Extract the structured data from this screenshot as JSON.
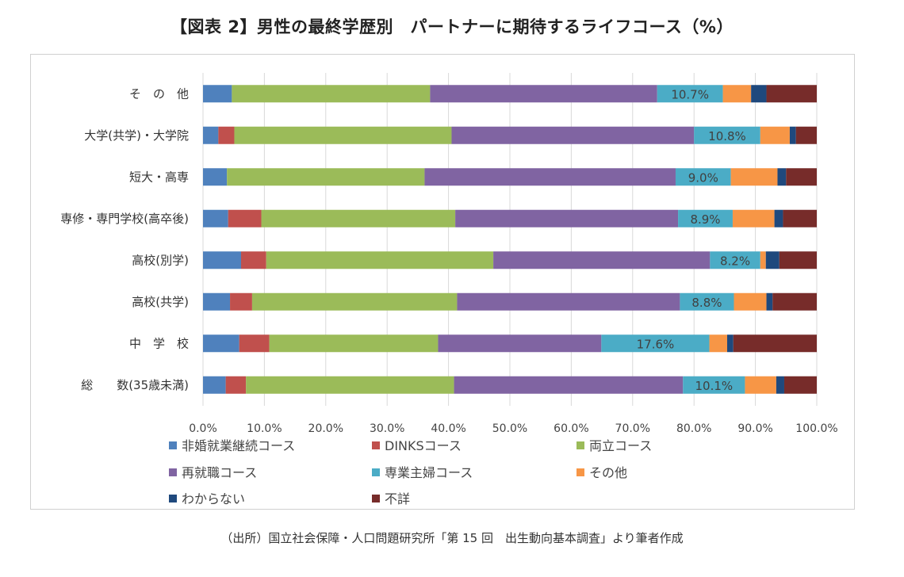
{
  "title": "【図表 2】男性の最終学歴別　パートナーに期待するライフコース（%）",
  "source": "（出所）国立社会保障・人口問題研究所「第 15 回　出生動向基本調査」より筆者作成",
  "chart_data": {
    "type": "bar",
    "orientation": "horizontal",
    "stacked": "percent",
    "categories": [
      "その他",
      "大学(共学)・大学院",
      "短大・高専",
      "専修・専門学校(高卒後)",
      "高校(別学)",
      "高校(共学)",
      "中学校",
      "総数(35歳未満)"
    ],
    "category_labels": [
      "そ　の　他",
      "大学(共学)・大学院",
      "短大・高専",
      "専修・専門学校(高卒後)",
      "高校(別学)",
      "高校(共学)",
      "中　学　校",
      "総　　数(35歳未満)"
    ],
    "xlim": [
      0,
      100
    ],
    "xticks": [
      "0.0%",
      "10.0%",
      "20.0%",
      "30.0%",
      "40.0%",
      "50.0%",
      "60.0%",
      "70.0%",
      "80.0%",
      "90.0%",
      "100.0%"
    ],
    "grid": true,
    "legend_position": "bottom",
    "series": [
      {
        "name": "非婚就業継続コース",
        "color": "#4f81bd",
        "values": [
          4.7,
          2.5,
          3.9,
          4.1,
          6.2,
          4.4,
          5.9,
          3.7
        ]
      },
      {
        "name": "DINKSコース",
        "color": "#c0504d",
        "values": [
          0.0,
          2.6,
          0.0,
          5.4,
          4.1,
          3.6,
          4.9,
          3.3
        ]
      },
      {
        "name": "両立コース",
        "color": "#9bbb59",
        "values": [
          32.3,
          35.4,
          32.2,
          31.6,
          37.0,
          33.4,
          27.5,
          33.9
        ]
      },
      {
        "name": "再就職コース",
        "color": "#8064a2",
        "values": [
          37.0,
          39.5,
          40.9,
          36.3,
          35.3,
          36.3,
          26.6,
          37.3
        ]
      },
      {
        "name": "専業主婦コース",
        "color": "#4bacc6",
        "values": [
          10.7,
          10.8,
          9.0,
          8.9,
          8.2,
          8.8,
          17.6,
          10.1
        ]
      },
      {
        "name": "その他",
        "color": "#f79646",
        "values": [
          4.6,
          4.8,
          7.6,
          6.8,
          0.9,
          5.3,
          2.9,
          5.1
        ]
      },
      {
        "name": "わからない",
        "color": "#1f497d",
        "values": [
          2.5,
          1.0,
          1.4,
          1.4,
          2.2,
          1.0,
          1.0,
          1.3
        ]
      },
      {
        "name": "不詳",
        "color": "#772c2a",
        "values": [
          8.2,
          3.4,
          5.0,
          5.5,
          6.1,
          7.2,
          13.6,
          5.3
        ]
      }
    ],
    "data_labels": {
      "series": "専業主婦コース",
      "texts": [
        "10.7%",
        "10.8%",
        "9.0%",
        "8.9%",
        "8.2%",
        "8.8%",
        "17.6%",
        "10.1%"
      ]
    }
  }
}
